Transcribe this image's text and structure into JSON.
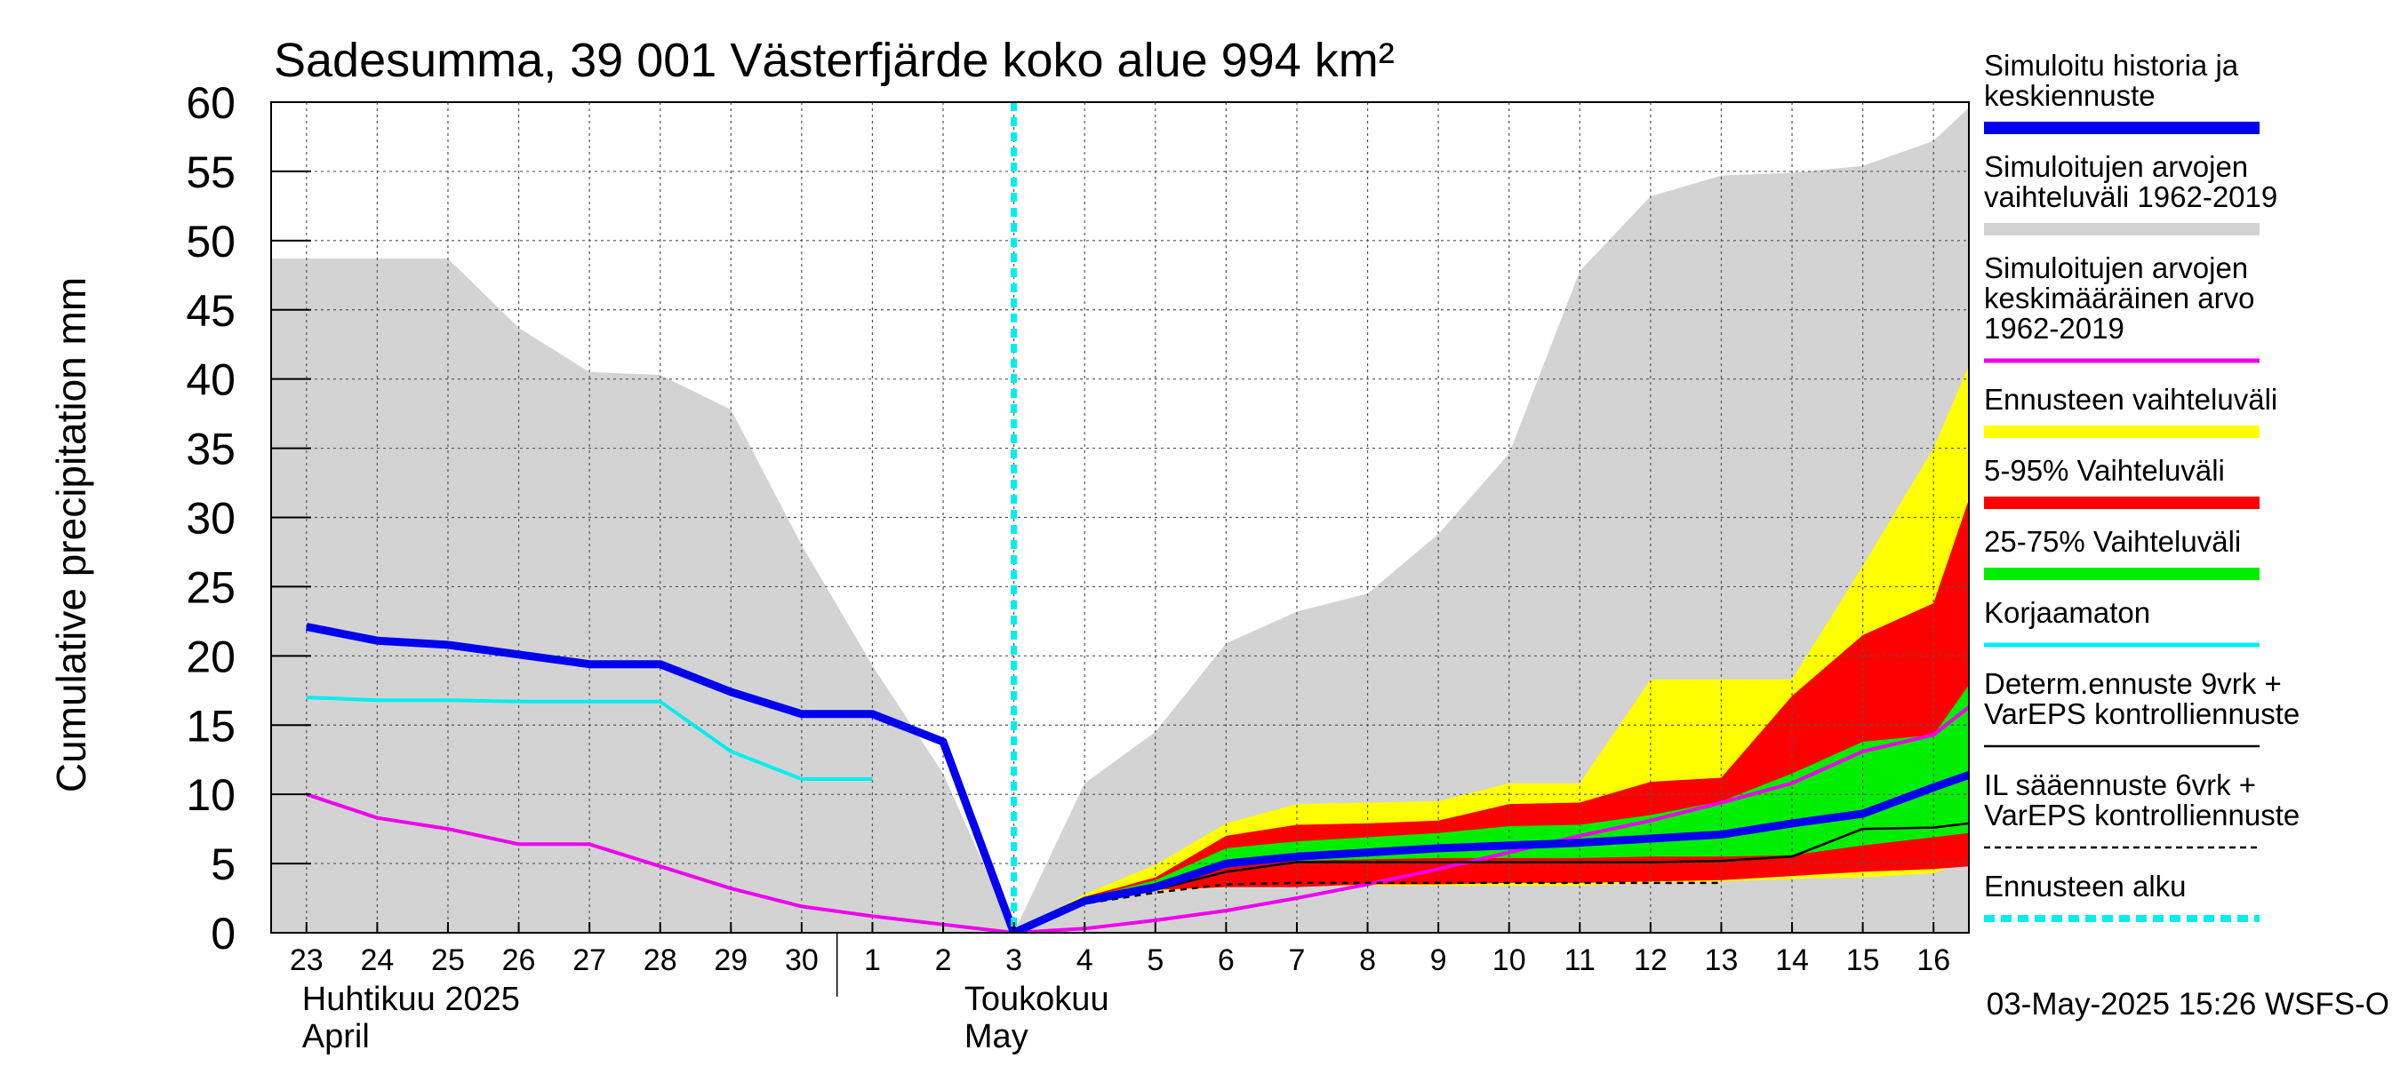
{
  "chart_data": {
    "type": "area",
    "title": "Sadesumma, 39 001 Västerfjärde koko alue 994 km²",
    "ylabel": "Cumulative precipitation   mm",
    "ylim": [
      0,
      60
    ],
    "yticks": [
      0,
      5,
      10,
      15,
      20,
      25,
      30,
      35,
      40,
      45,
      50,
      55,
      60
    ],
    "xlim": [
      -0.5,
      23.5
    ],
    "x_tick_labels": [
      "23",
      "24",
      "25",
      "26",
      "27",
      "28",
      "29",
      "30",
      "1",
      "2",
      "3",
      "4",
      "5",
      "6",
      "7",
      "8",
      "9",
      "10",
      "11",
      "12",
      "13",
      "14",
      "15",
      "16"
    ],
    "x_month_labels": [
      {
        "line1": "Huhtikuu  2025",
        "line2": "April"
      },
      {
        "line1": "Toukokuu",
        "line2": "May"
      }
    ],
    "timestamp": "03-May-2025 15:26 WSFS-O",
    "forecast_start_x": 10,
    "series": [
      {
        "name": "Simuloitujen arvojen vaihteluväli 1962-2019",
        "kind": "band",
        "color": "#d3d3d3",
        "x": [
          -0.5,
          0,
          1,
          2,
          3,
          4,
          5,
          6,
          7,
          8,
          9,
          10,
          11,
          12,
          13,
          14,
          15,
          16,
          17,
          18,
          19,
          20,
          21,
          22,
          23,
          23.5
        ],
        "upper": [
          48.7,
          48.7,
          48.7,
          48.7,
          43.7,
          40.5,
          40.3,
          37.8,
          28,
          19.3,
          11.5,
          0,
          10.8,
          14.5,
          20.9,
          23.2,
          24.5,
          28.8,
          34.6,
          47.8,
          53.2,
          54.7,
          54.9,
          55.4,
          57.2,
          59.6
        ],
        "lower": [
          0,
          0,
          0,
          0,
          0,
          0,
          0,
          0,
          0,
          0,
          0,
          0,
          0,
          0,
          0,
          0,
          0,
          0,
          0,
          0,
          0,
          0,
          0,
          0,
          0,
          0
        ]
      },
      {
        "name": "Ennusteen vaihteluväli",
        "kind": "band",
        "color": "#ffff00",
        "x": [
          10,
          11,
          12,
          13,
          14,
          15,
          16,
          17,
          18,
          19,
          20,
          21,
          22,
          23,
          23.5
        ],
        "upper": [
          0,
          2.8,
          4.9,
          7.9,
          9.3,
          9.4,
          9.5,
          10.8,
          10.8,
          18.3,
          18.3,
          18.3,
          26.5,
          35,
          41
        ],
        "lower": [
          0,
          2.2,
          3,
          3.3,
          3.4,
          3.4,
          3.4,
          3.4,
          3.4,
          3.6,
          3.7,
          3.9,
          4,
          4.3,
          5.3
        ]
      },
      {
        "name": "5-95% Vaihteluväli",
        "kind": "band",
        "color": "#ff0000",
        "x": [
          10,
          11,
          12,
          13,
          14,
          15,
          16,
          17,
          18,
          19,
          20,
          21,
          22,
          23,
          23.5
        ],
        "upper": [
          0,
          2.6,
          4,
          7,
          7.8,
          7.9,
          8.1,
          9.3,
          9.4,
          10.9,
          11.2,
          17.1,
          21.5,
          23.8,
          31.3
        ],
        "lower": [
          0,
          2.3,
          3.1,
          3.3,
          3.3,
          3.5,
          3.5,
          3.6,
          3.6,
          3.7,
          3.8,
          4.1,
          4.4,
          4.6,
          4.8
        ]
      },
      {
        "name": "25-75% Vaihteluväli",
        "kind": "band",
        "color": "#00ee00",
        "x": [
          10,
          11,
          12,
          13,
          14,
          15,
          16,
          17,
          18,
          19,
          20,
          21,
          22,
          23,
          23.5
        ],
        "upper": [
          0,
          2.5,
          3.8,
          6.1,
          6.6,
          6.9,
          7.2,
          7.7,
          7.8,
          8.5,
          9.5,
          11.5,
          13.8,
          14.3,
          17.9
        ],
        "lower": [
          0,
          2.4,
          3.2,
          4.8,
          5.2,
          5.3,
          5.4,
          5.4,
          5.4,
          5.5,
          5.5,
          5.6,
          6.3,
          6.9,
          7.2
        ]
      },
      {
        "name": "Simuloitujen arvojen keskimääräinen arvo 1962-2019",
        "kind": "line",
        "color": "#ee00ee",
        "width": 4,
        "x": [
          0,
          1,
          2,
          3,
          4,
          5,
          6,
          7,
          8,
          9,
          10,
          11,
          12,
          13,
          14,
          15,
          16,
          17,
          18,
          19,
          20,
          21,
          22,
          23,
          23.5
        ],
        "values": [
          10,
          8.3,
          7.5,
          6.4,
          6.4,
          4.8,
          3.2,
          1.9,
          1.2,
          0.6,
          0,
          0.3,
          0.9,
          1.6,
          2.5,
          3.5,
          4.6,
          5.8,
          7,
          8.1,
          9.4,
          10.8,
          13.1,
          14.3,
          16.3
        ]
      },
      {
        "name": "Korjaamaton",
        "kind": "line",
        "color": "#00eeee",
        "width": 4,
        "x": [
          0,
          1,
          2,
          3,
          4,
          5,
          6,
          7,
          8
        ],
        "values": [
          17,
          16.8,
          16.8,
          16.7,
          16.7,
          16.7,
          13.1,
          11.1,
          11.1
        ]
      },
      {
        "name": "IL sääennuste 6vrk + VarEPS kontrolliennuste",
        "kind": "line",
        "color": "#000000",
        "width": 2.5,
        "dash": "7,6",
        "x": [
          10,
          11,
          12,
          13,
          14,
          15,
          16,
          17,
          18,
          19,
          20
        ],
        "values": [
          0,
          2.1,
          2.9,
          3.5,
          3.6,
          3.6,
          3.6,
          3.6,
          3.6,
          3.6,
          3.6
        ]
      },
      {
        "name": "Determ.ennuste 9vrk + VarEPS kontrolliennuste",
        "kind": "line",
        "color": "#000000",
        "width": 2.5,
        "x": [
          10,
          11,
          12,
          13,
          14,
          15,
          16,
          17,
          18,
          19,
          20,
          21,
          22,
          23,
          23.5
        ],
        "values": [
          0,
          2.3,
          3.1,
          4.4,
          5.1,
          5.1,
          5.1,
          5.1,
          5.1,
          5.1,
          5.2,
          5.5,
          7.5,
          7.6,
          7.9
        ]
      },
      {
        "name": "Simuloitu historia ja keskiennuste",
        "kind": "line",
        "color": "#0000ee",
        "width": 9,
        "x": [
          0,
          1,
          2,
          3,
          4,
          5,
          6,
          7,
          8,
          9,
          10,
          11,
          12,
          13,
          14,
          15,
          16,
          17,
          18,
          19,
          20,
          21,
          22,
          23,
          23.5
        ],
        "values": [
          22.1,
          21.1,
          20.8,
          20.1,
          19.4,
          19.4,
          17.4,
          15.8,
          15.8,
          13.8,
          0,
          2.3,
          3.3,
          5,
          5.5,
          5.8,
          6.1,
          6.3,
          6.5,
          6.8,
          7.1,
          7.9,
          8.6,
          10.5,
          11.4
        ]
      }
    ]
  },
  "legend": [
    {
      "label": "Simuloitu historia ja keskiennuste",
      "lines": [
        "Simuloitu historia ja",
        "keskiennuste"
      ],
      "color": "#0000ee",
      "style": "thick"
    },
    {
      "label": "Simuloitujen arvojen vaihteluväli 1962-2019",
      "lines": [
        "Simuloitujen arvojen",
        "vaihteluväli 1962-2019"
      ],
      "color": "#d3d3d3",
      "style": "thick"
    },
    {
      "label": "Simuloitujen arvojen keskimääräinen arvo 1962-2019",
      "lines": [
        "Simuloitujen arvojen",
        "keskimääräinen arvo",
        "   1962-2019"
      ],
      "color": "#ee00ee",
      "style": "thin"
    },
    {
      "label": "Ennusteen vaihteluväli",
      "lines": [
        "Ennusteen vaihteluväli"
      ],
      "color": "#ffff00",
      "style": "thick"
    },
    {
      "label": "5-95% Vaihteluväli",
      "lines": [
        "5-95% Vaihteluväli"
      ],
      "color": "#ff0000",
      "style": "thick"
    },
    {
      "label": "25-75% Vaihteluväli",
      "lines": [
        "25-75% Vaihteluväli"
      ],
      "color": "#00ee00",
      "style": "thick"
    },
    {
      "label": "Korjaamaton",
      "lines": [
        "Korjaamaton"
      ],
      "color": "#00eeee",
      "style": "thin"
    },
    {
      "label": "Determ.ennuste 9vrk + VarEPS kontrolliennuste",
      "lines": [
        "Determ.ennuste 9vrk +",
        "VarEPS kontrolliennuste"
      ],
      "color": "#000000",
      "style": "line"
    },
    {
      "label": "IL sääennuste 6vrk + VarEPS kontrolliennuste",
      "lines": [
        "IL sääennuste 6vrk  +",
        "  VarEPS kontrolliennuste"
      ],
      "color": "#000000",
      "style": "dashed"
    },
    {
      "label": "Ennusteen alku",
      "lines": [
        "Ennusteen alku"
      ],
      "color": "#00eeee",
      "style": "dotted"
    }
  ]
}
